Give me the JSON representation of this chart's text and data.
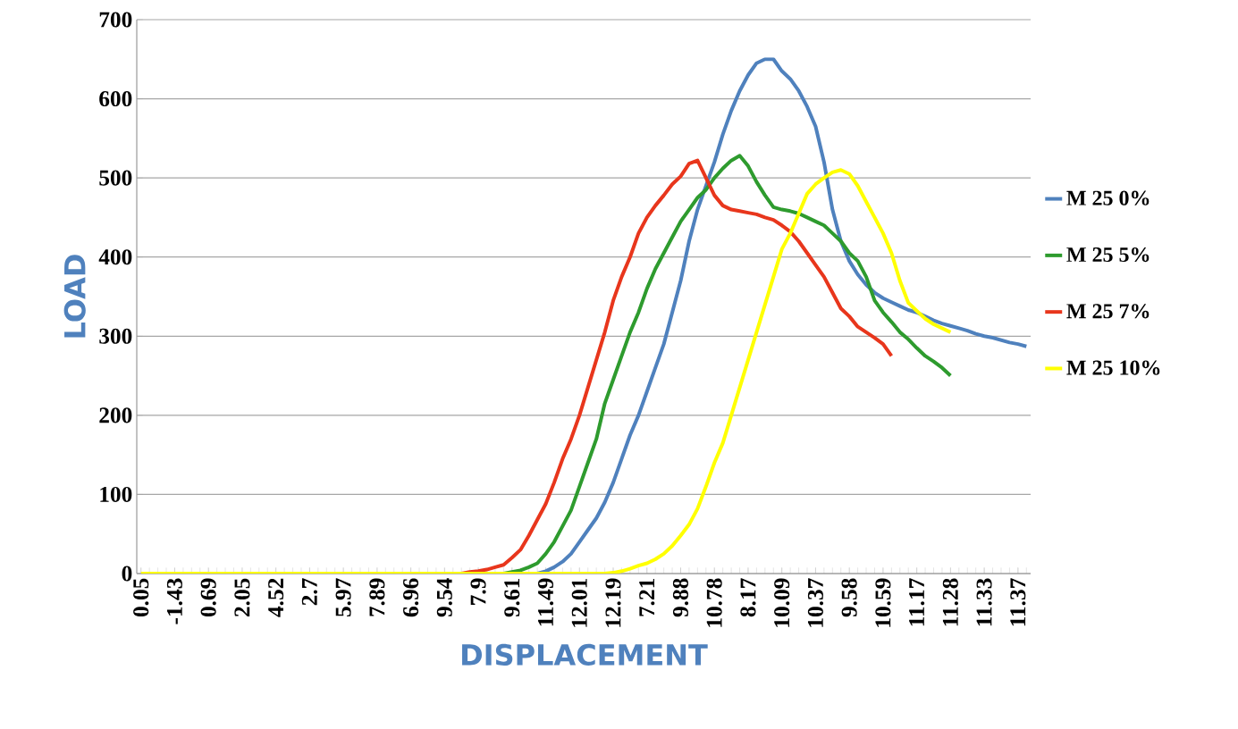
{
  "chart_data": {
    "type": "line",
    "xlabel": "DISPLACEMENT",
    "ylabel": "LOAD",
    "categories": [
      "0.05",
      null,
      null,
      null,
      "-1.43",
      null,
      null,
      null,
      "0.69",
      null,
      null,
      null,
      "2.05",
      null,
      null,
      null,
      "4.52",
      null,
      null,
      null,
      "2.7",
      null,
      null,
      null,
      "5.97",
      null,
      null,
      null,
      "7.89",
      null,
      null,
      null,
      "6.96",
      null,
      null,
      null,
      "9.54",
      null,
      null,
      null,
      "7.9",
      null,
      null,
      null,
      "9.61",
      null,
      null,
      null,
      "11.49",
      null,
      null,
      null,
      "12.01",
      null,
      null,
      null,
      "12.19",
      null,
      null,
      null,
      "7.21",
      null,
      null,
      null,
      "9.88",
      null,
      null,
      null,
      "10.78",
      null,
      null,
      null,
      "8.17",
      null,
      null,
      null,
      "10.09",
      null,
      null,
      null,
      "10.37",
      null,
      null,
      null,
      "9.58",
      null,
      null,
      null,
      "10.59",
      null,
      null,
      null,
      "11.17",
      null,
      null,
      null,
      "11.28",
      null,
      null,
      null,
      "11.33",
      null,
      null,
      null,
      "11.37",
      null
    ],
    "series": [
      {
        "name": "M 25 0%",
        "color": "#4f81bd",
        "values": [
          null,
          null,
          null,
          null,
          null,
          null,
          null,
          null,
          null,
          null,
          null,
          null,
          null,
          null,
          null,
          null,
          null,
          null,
          null,
          null,
          null,
          null,
          null,
          null,
          null,
          null,
          null,
          null,
          null,
          null,
          null,
          null,
          null,
          null,
          null,
          null,
          null,
          null,
          null,
          null,
          null,
          null,
          null,
          null,
          null,
          null,
          null,
          0,
          3,
          8,
          15,
          25,
          40,
          55,
          70,
          90,
          115,
          145,
          175,
          200,
          230,
          260,
          290,
          330,
          370,
          420,
          460,
          490,
          520,
          555,
          585,
          610,
          630,
          645,
          650,
          650,
          635,
          625,
          610,
          590,
          565,
          520,
          460,
          420,
          395,
          378,
          365,
          355,
          348,
          343,
          338,
          333,
          330,
          325,
          320,
          316,
          313,
          310,
          307,
          303,
          300,
          298,
          295,
          292,
          290,
          287
        ]
      },
      {
        "name": "M 25 5%",
        "color": "#2e9b2e",
        "values": [
          null,
          null,
          null,
          null,
          null,
          null,
          null,
          null,
          null,
          null,
          null,
          null,
          null,
          null,
          null,
          null,
          null,
          null,
          null,
          null,
          null,
          null,
          null,
          null,
          null,
          null,
          null,
          null,
          null,
          null,
          null,
          null,
          null,
          null,
          null,
          null,
          null,
          null,
          null,
          null,
          null,
          null,
          null,
          0,
          2,
          4,
          8,
          13,
          25,
          40,
          60,
          80,
          110,
          140,
          170,
          215,
          245,
          275,
          305,
          330,
          360,
          385,
          405,
          425,
          445,
          460,
          475,
          485,
          500,
          512,
          522,
          528,
          515,
          495,
          478,
          463,
          460,
          458,
          455,
          450,
          445,
          440,
          430,
          420,
          405,
          395,
          375,
          345,
          330,
          318,
          305,
          296,
          285,
          275,
          268,
          260,
          250,
          null,
          null,
          null,
          null,
          null,
          null,
          null,
          null,
          null
        ]
      },
      {
        "name": "M 25 7%",
        "color": "#e8361c",
        "values": [
          null,
          null,
          null,
          null,
          null,
          null,
          null,
          null,
          null,
          null,
          null,
          null,
          null,
          null,
          null,
          null,
          null,
          null,
          null,
          null,
          null,
          null,
          null,
          null,
          null,
          null,
          null,
          null,
          null,
          null,
          null,
          null,
          null,
          null,
          null,
          null,
          null,
          null,
          0,
          2,
          3,
          5,
          8,
          11,
          20,
          30,
          48,
          68,
          88,
          115,
          145,
          170,
          200,
          235,
          270,
          305,
          345,
          375,
          400,
          430,
          450,
          465,
          478,
          492,
          502,
          518,
          522,
          500,
          478,
          465,
          460,
          458,
          456,
          454,
          450,
          447,
          440,
          432,
          420,
          405,
          390,
          375,
          355,
          335,
          325,
          312,
          305,
          298,
          290,
          275,
          null,
          null,
          null,
          null,
          null,
          null,
          null,
          null,
          null,
          null,
          null,
          null,
          null,
          null,
          null,
          null
        ]
      },
      {
        "name": "M 25 10%",
        "color": "#ffff00",
        "values": [
          0,
          0,
          0,
          0,
          0,
          0,
          0,
          0,
          0,
          0,
          0,
          0,
          0,
          0,
          0,
          0,
          0,
          0,
          0,
          0,
          0,
          0,
          0,
          0,
          0,
          0,
          0,
          0,
          0,
          0,
          0,
          0,
          0,
          0,
          0,
          0,
          0,
          0,
          0,
          0,
          0,
          0,
          0,
          0,
          0,
          0,
          0,
          0,
          0,
          0,
          0,
          0,
          0,
          0,
          0,
          0,
          1,
          3,
          6,
          10,
          13,
          18,
          25,
          35,
          48,
          62,
          82,
          110,
          140,
          165,
          200,
          235,
          270,
          305,
          340,
          375,
          410,
          430,
          455,
          480,
          492,
          500,
          507,
          510,
          505,
          490,
          470,
          450,
          430,
          405,
          370,
          342,
          332,
          322,
          315,
          310,
          305,
          null,
          null,
          null,
          null,
          null,
          null,
          null,
          null,
          null
        ]
      }
    ],
    "ylim": [
      0,
      700
    ],
    "yticks": [
      0,
      100,
      200,
      300,
      400,
      500,
      600,
      700
    ],
    "grid": "y",
    "legend": "right",
    "marker": "none",
    "line_style": "solid"
  }
}
